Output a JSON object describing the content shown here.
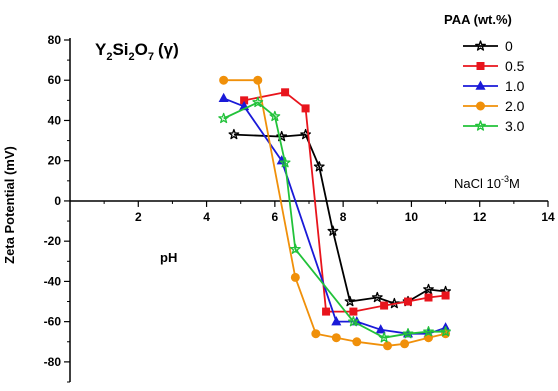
{
  "chart_data": {
    "type": "line",
    "xlabel": "pH",
    "ylabel": "Zeta Potential (mV)",
    "xlim": [
      0,
      14
    ],
    "ylim": [
      -90,
      80
    ],
    "x_ticks": [
      2,
      4,
      6,
      8,
      10,
      12,
      14
    ],
    "y_ticks": [
      80,
      60,
      40,
      20,
      0,
      -20,
      -40,
      -60,
      -80
    ],
    "x_tick_labels": [
      "2",
      "4",
      "6",
      "8",
      "10",
      "12",
      "14"
    ],
    "y_tick_labels": [
      "80",
      "60",
      "40",
      "20",
      "0",
      "-20",
      "-40",
      "-60",
      "-80"
    ],
    "grid": false,
    "legend_title": "PAA (wt.%)",
    "legend_position": "top-right",
    "annotations": {
      "compound_base": "Y",
      "compound_sub1": "2",
      "compound_mid": "Si",
      "compound_sub2": "2",
      "compound_o": "O",
      "compound_sub3": "7",
      "compound_phase": "(γ)",
      "electrolyte": "NaCl 10",
      "electrolyte_exp": "-3",
      "electrolyte_unit": "M"
    },
    "series": [
      {
        "name": "0",
        "color": "#000000",
        "marker": "star",
        "x": [
          4.8,
          6.2,
          6.9,
          7.3,
          7.7,
          8.2,
          9.0,
          9.5,
          9.9,
          10.5,
          11.0
        ],
        "y": [
          33,
          32,
          33,
          17,
          -15,
          -50,
          -48,
          -51,
          -50,
          -44,
          -45
        ]
      },
      {
        "name": "0.5",
        "color": "#e8141c",
        "marker": "square",
        "x": [
          5.1,
          6.3,
          6.9,
          7.5,
          8.3,
          9.2,
          9.9,
          10.5,
          11.0
        ],
        "y": [
          50,
          54,
          46,
          -55,
          -55,
          -52,
          -50,
          -48,
          -47
        ]
      },
      {
        "name": "1.0",
        "color": "#1a1ad8",
        "marker": "triangle",
        "x": [
          4.5,
          5.1,
          6.2,
          7.8,
          8.4,
          9.1,
          9.9,
          10.5,
          11.0
        ],
        "y": [
          51,
          47,
          20,
          -60,
          -60,
          -64,
          -66,
          -66,
          -63
        ]
      },
      {
        "name": "2.0",
        "color": "#f0900a",
        "marker": "circle",
        "x": [
          4.5,
          5.5,
          6.6,
          7.2,
          7.8,
          8.4,
          9.3,
          9.8,
          10.5,
          11.0
        ],
        "y": [
          60,
          60,
          -38,
          -66,
          -68,
          -70,
          -72,
          -71,
          -68,
          -66
        ]
      },
      {
        "name": "3.0",
        "color": "#22c23a",
        "marker": "star",
        "x": [
          4.5,
          5.5,
          6.0,
          6.3,
          6.6,
          8.3,
          9.2,
          9.9,
          10.5,
          11.0
        ],
        "y": [
          41,
          49,
          42,
          19,
          -24,
          -60,
          -68,
          -66,
          -65,
          -65
        ]
      }
    ]
  }
}
